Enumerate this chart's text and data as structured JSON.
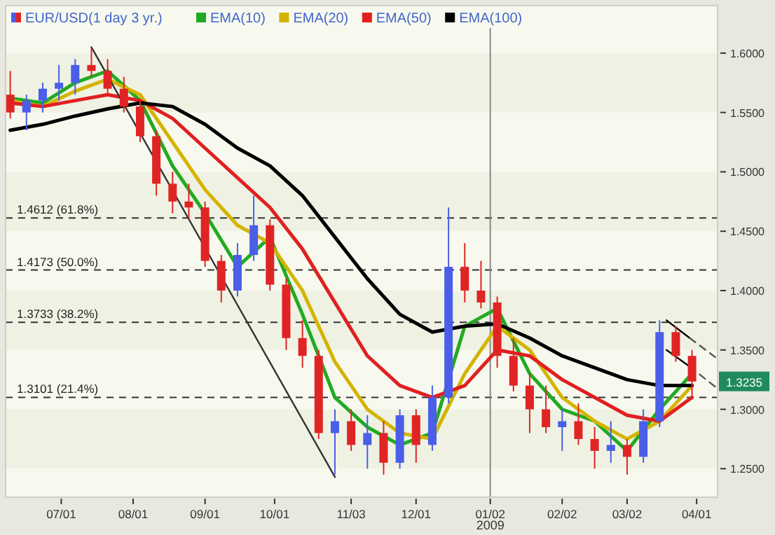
{
  "chart_data": {
    "type": "candlestick",
    "x": [
      "2008-06-09",
      "2008-06-16",
      "2008-06-23",
      "2008-06-30",
      "2008-07-07",
      "2008-07-14",
      "2008-07-21",
      "2008-07-28",
      "2008-08-04",
      "2008-08-11",
      "2008-08-18",
      "2008-08-25",
      "2008-09-01",
      "2008-09-08",
      "2008-09-15",
      "2008-09-22",
      "2008-09-29",
      "2008-10-06",
      "2008-10-13",
      "2008-10-20",
      "2008-10-27",
      "2008-11-03",
      "2008-11-10",
      "2008-11-17",
      "2008-11-24",
      "2008-12-01",
      "2008-12-08",
      "2008-12-15",
      "2008-12-22",
      "2008-12-29",
      "2009-01-05",
      "2009-01-12",
      "2009-01-19",
      "2009-01-26",
      "2009-02-02",
      "2009-02-09",
      "2009-02-16",
      "2009-02-23",
      "2009-03-02",
      "2009-03-09",
      "2009-03-16",
      "2009-03-23",
      "2009-03-30"
    ],
    "series": [
      {
        "name": "EUR/USD(1 day 3 yr.)",
        "ohlc": [
          [
            1.565,
            1.585,
            1.545,
            1.55
          ],
          [
            1.55,
            1.565,
            1.535,
            1.56
          ],
          [
            1.56,
            1.575,
            1.55,
            1.57
          ],
          [
            1.57,
            1.59,
            1.56,
            1.575
          ],
          [
            1.575,
            1.595,
            1.565,
            1.59
          ],
          [
            1.59,
            1.605,
            1.58,
            1.585
          ],
          [
            1.585,
            1.595,
            1.565,
            1.57
          ],
          [
            1.57,
            1.58,
            1.55,
            1.555
          ],
          [
            1.555,
            1.56,
            1.525,
            1.53
          ],
          [
            1.53,
            1.535,
            1.48,
            1.49
          ],
          [
            1.49,
            1.5,
            1.465,
            1.475
          ],
          [
            1.475,
            1.49,
            1.46,
            1.47
          ],
          [
            1.47,
            1.475,
            1.42,
            1.425
          ],
          [
            1.425,
            1.43,
            1.39,
            1.4
          ],
          [
            1.4,
            1.44,
            1.395,
            1.43
          ],
          [
            1.43,
            1.48,
            1.425,
            1.455
          ],
          [
            1.455,
            1.46,
            1.4,
            1.405
          ],
          [
            1.405,
            1.41,
            1.35,
            1.36
          ],
          [
            1.36,
            1.375,
            1.335,
            1.345
          ],
          [
            1.345,
            1.35,
            1.275,
            1.28
          ],
          [
            1.28,
            1.3,
            1.245,
            1.29
          ],
          [
            1.29,
            1.3,
            1.265,
            1.27
          ],
          [
            1.27,
            1.295,
            1.25,
            1.28
          ],
          [
            1.28,
            1.29,
            1.245,
            1.255
          ],
          [
            1.255,
            1.3,
            1.25,
            1.295
          ],
          [
            1.295,
            1.3,
            1.255,
            1.27
          ],
          [
            1.27,
            1.32,
            1.265,
            1.31
          ],
          [
            1.31,
            1.47,
            1.305,
            1.42
          ],
          [
            1.42,
            1.44,
            1.39,
            1.4
          ],
          [
            1.4,
            1.425,
            1.385,
            1.39
          ],
          [
            1.39,
            1.395,
            1.335,
            1.345
          ],
          [
            1.345,
            1.36,
            1.315,
            1.32
          ],
          [
            1.32,
            1.33,
            1.28,
            1.3
          ],
          [
            1.3,
            1.32,
            1.28,
            1.285
          ],
          [
            1.285,
            1.3,
            1.265,
            1.29
          ],
          [
            1.29,
            1.305,
            1.27,
            1.275
          ],
          [
            1.275,
            1.285,
            1.25,
            1.265
          ],
          [
            1.265,
            1.29,
            1.255,
            1.27
          ],
          [
            1.27,
            1.275,
            1.245,
            1.26
          ],
          [
            1.26,
            1.3,
            1.255,
            1.29
          ],
          [
            1.29,
            1.375,
            1.285,
            1.365
          ],
          [
            1.365,
            1.37,
            1.34,
            1.345
          ],
          [
            1.345,
            1.35,
            1.31,
            1.3235
          ]
        ]
      },
      {
        "name": "EMA(10)",
        "type": "line",
        "color": "#22aa22",
        "x": [
          "2008-06-09",
          "2008-06-23",
          "2008-07-07",
          "2008-07-21",
          "2008-08-04",
          "2008-08-18",
          "2008-09-01",
          "2008-09-15",
          "2008-09-29",
          "2008-10-13",
          "2008-10-27",
          "2008-11-10",
          "2008-11-24",
          "2008-12-08",
          "2008-12-22",
          "2009-01-05",
          "2009-01-19",
          "2009-02-02",
          "2009-02-16",
          "2009-03-02",
          "2009-03-16",
          "2009-03-30"
        ],
        "values": [
          1.562,
          1.558,
          1.575,
          1.585,
          1.56,
          1.505,
          1.465,
          1.42,
          1.445,
          1.38,
          1.31,
          1.285,
          1.27,
          1.28,
          1.37,
          1.385,
          1.33,
          1.3,
          1.29,
          1.265,
          1.3,
          1.33
        ]
      },
      {
        "name": "EMA(20)",
        "type": "line",
        "color": "#d4b400",
        "x": [
          "2008-06-09",
          "2008-06-23",
          "2008-07-07",
          "2008-07-21",
          "2008-08-04",
          "2008-08-18",
          "2008-09-01",
          "2008-09-15",
          "2008-09-29",
          "2008-10-13",
          "2008-10-27",
          "2008-11-10",
          "2008-11-24",
          "2008-12-08",
          "2008-12-22",
          "2009-01-05",
          "2009-01-19",
          "2009-02-02",
          "2009-02-16",
          "2009-03-02",
          "2009-03-16",
          "2009-03-30"
        ],
        "values": [
          1.56,
          1.555,
          1.568,
          1.578,
          1.565,
          1.525,
          1.485,
          1.455,
          1.44,
          1.4,
          1.34,
          1.3,
          1.28,
          1.275,
          1.33,
          1.37,
          1.35,
          1.31,
          1.29,
          1.275,
          1.29,
          1.32
        ]
      },
      {
        "name": "EMA(50)",
        "type": "line",
        "color": "#e02020",
        "x": [
          "2008-06-09",
          "2008-06-23",
          "2008-07-07",
          "2008-07-21",
          "2008-08-04",
          "2008-08-18",
          "2008-09-01",
          "2008-09-15",
          "2008-09-29",
          "2008-10-13",
          "2008-10-27",
          "2008-11-10",
          "2008-11-24",
          "2008-12-08",
          "2008-12-22",
          "2009-01-05",
          "2009-01-19",
          "2009-02-02",
          "2009-02-16",
          "2009-03-02",
          "2009-03-16",
          "2009-03-30"
        ],
        "values": [
          1.558,
          1.555,
          1.56,
          1.565,
          1.56,
          1.545,
          1.52,
          1.495,
          1.47,
          1.435,
          1.39,
          1.345,
          1.32,
          1.31,
          1.32,
          1.35,
          1.345,
          1.325,
          1.31,
          1.295,
          1.29,
          1.31
        ]
      },
      {
        "name": "EMA(100)",
        "type": "line",
        "color": "#000000",
        "x": [
          "2008-06-09",
          "2008-06-23",
          "2008-07-07",
          "2008-07-21",
          "2008-08-04",
          "2008-08-18",
          "2008-09-01",
          "2008-09-15",
          "2008-09-29",
          "2008-10-13",
          "2008-10-27",
          "2008-11-10",
          "2008-11-24",
          "2008-12-08",
          "2008-12-22",
          "2009-01-05",
          "2009-01-19",
          "2009-02-02",
          "2009-02-16",
          "2009-03-02",
          "2009-03-16",
          "2009-03-30"
        ],
        "values": [
          1.535,
          1.54,
          1.547,
          1.553,
          1.558,
          1.555,
          1.54,
          1.52,
          1.505,
          1.48,
          1.445,
          1.41,
          1.38,
          1.365,
          1.37,
          1.372,
          1.36,
          1.345,
          1.335,
          1.325,
          1.32,
          1.32
        ]
      },
      {
        "type": "line",
        "color": "#333333",
        "x": [
          "2008-07-14",
          "2008-10-27"
        ],
        "values": [
          1.605,
          1.243
        ]
      },
      {
        "type": "line",
        "color": "#000000",
        "x": [
          "2009-03-19",
          "2009-03-29"
        ],
        "values": [
          1.375,
          1.36
        ]
      },
      {
        "type": "line",
        "color": "#555555",
        "line_style": "dashed",
        "x": [
          "2009-03-29",
          "2009-04-09"
        ],
        "values": [
          1.36,
          1.344
        ]
      },
      {
        "type": "line",
        "color": "#000000",
        "x": [
          "2009-03-19",
          "2009-03-29"
        ],
        "values": [
          1.35,
          1.336
        ]
      },
      {
        "type": "line",
        "color": "#555555",
        "line_style": "dashed",
        "x": [
          "2009-03-29",
          "2009-04-09"
        ],
        "values": [
          1.336,
          1.319
        ]
      }
    ],
    "xlim": [
      "2008-06-07",
      "2009-04-10"
    ],
    "xticks": [
      {
        "value": "2008-07-01",
        "label": "07/01"
      },
      {
        "value": "2008-08-01",
        "label": "08/01"
      },
      {
        "value": "2008-09-01",
        "label": "09/01"
      },
      {
        "value": "2008-10-01",
        "label": "10/01"
      },
      {
        "value": "2008-11-03",
        "label": "11/03"
      },
      {
        "value": "2008-12-01",
        "label": "12/01"
      },
      {
        "value": "2009-01-02",
        "label": "01/02"
      },
      {
        "value": "2009-02-02",
        "label": "02/02"
      },
      {
        "value": "2009-03-02",
        "label": "03/02"
      },
      {
        "value": "2009-04-01",
        "label": "04/01"
      }
    ],
    "ylim": [
      1.226,
      1.64
    ],
    "yticks": [
      {
        "value": 1.25,
        "label": "1.2500"
      },
      {
        "value": 1.3,
        "label": "1.3000"
      },
      {
        "value": 1.35,
        "label": "1.3500"
      },
      {
        "value": 1.4,
        "label": "1.4000"
      },
      {
        "value": 1.45,
        "label": "1.4500"
      },
      {
        "value": 1.5,
        "label": "1.5000"
      },
      {
        "value": 1.55,
        "label": "1.5500"
      },
      {
        "value": 1.6,
        "label": "1.6000"
      }
    ],
    "legend": "top",
    "ref_lines": [
      {
        "axis": "y",
        "value": 1.4612,
        "label": "1.4612 (61.8%)",
        "line_style": "dashed"
      },
      {
        "axis": "y",
        "value": 1.4173,
        "label": "1.4173 (50.0%)",
        "line_style": "dashed"
      },
      {
        "axis": "y",
        "value": 1.3733,
        "label": "1.3733 (38.2%)",
        "line_style": "dashed"
      },
      {
        "axis": "y",
        "value": 1.3101,
        "label": "1.3101 (21.4%)",
        "line_style": "dashed"
      },
      {
        "axis": "x",
        "value": "2009-01-02",
        "color": "#888888",
        "line_style": "solid"
      }
    ],
    "annotations": [
      {
        "text": "1.3235",
        "y": 1.3235
      },
      "2009"
    ]
  }
}
